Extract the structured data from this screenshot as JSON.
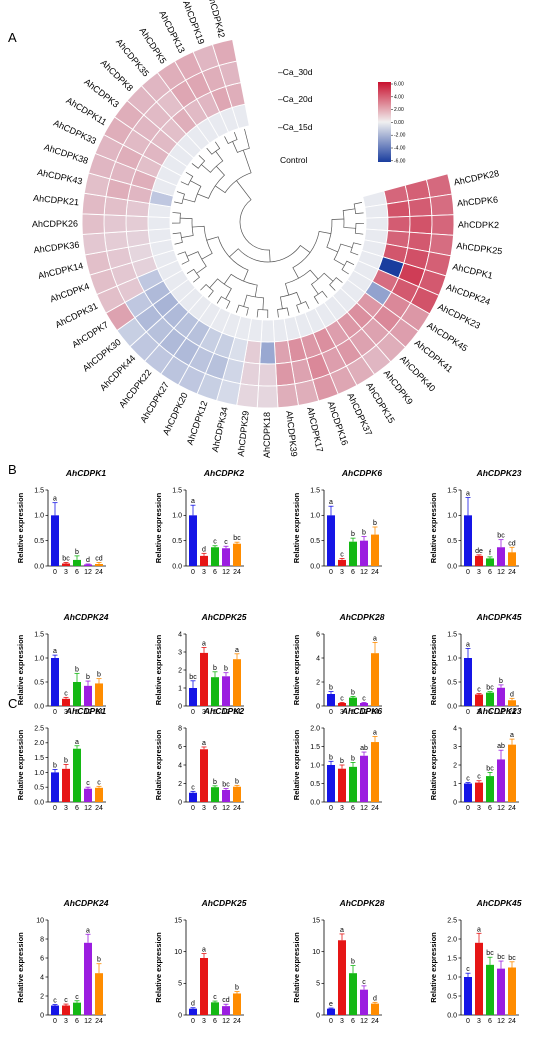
{
  "panels": {
    "a": "A",
    "b": "B",
    "c": "C"
  },
  "heatmap": {
    "genes": [
      "AhCDPK28",
      "AhCDPK6",
      "AhCDPK2",
      "AhCDPK25",
      "AhCDPK1",
      "AhCDPK24",
      "AhCDPK23",
      "AhCDPK45",
      "AhCDPK41",
      "AhCDPK40",
      "AhCDPK9",
      "AhCDPK15",
      "AhCDPK37",
      "AhCDPK16",
      "AhCDPK17",
      "AhCDPK39",
      "AhCDPK18",
      "AhCDPK29",
      "AhCDPK34",
      "AhCDPK12",
      "AhCDPK20",
      "AhCDPK27",
      "AhCDPK22",
      "AhCDPK44",
      "AhCDPK30",
      "AhCDPK7",
      "AhCDPK31",
      "AhCDPK4",
      "AhCDPK14",
      "AhCDPK36",
      "AhCDPK26",
      "AhCDPK21",
      "AhCDPK43",
      "AhCDPK38",
      "AhCDPK33",
      "AhCDPK11",
      "AhCDPK3",
      "AhCDPK8",
      "AhCDPK35",
      "AhCDPK5",
      "AhCDPK13",
      "AhCDPK19",
      "AhCDPK42"
    ],
    "tracks": [
      "Control",
      "Ca_15d",
      "Ca_20d",
      "Ca_30d"
    ],
    "values": [
      [
        0,
        3.2,
        3.4,
        3.1
      ],
      [
        0,
        3.8,
        3.5,
        3.0
      ],
      [
        0,
        3.5,
        3.8,
        3.2
      ],
      [
        0,
        3.3,
        3.6,
        3.0
      ],
      [
        0,
        3.7,
        3.9,
        3.4
      ],
      [
        0,
        -6.0,
        4.5,
        3.6
      ],
      [
        0,
        3.0,
        3.6,
        3.8
      ],
      [
        0,
        -2.0,
        2.2,
        1.8
      ],
      [
        0,
        1.8,
        2.2,
        1.6
      ],
      [
        0,
        2.0,
        1.5,
        1.2
      ],
      [
        0,
        1.8,
        1.5,
        1.0
      ],
      [
        0,
        1.6,
        1.8,
        1.2
      ],
      [
        0,
        2.0,
        1.6,
        1.4
      ],
      [
        0,
        1.8,
        2.2,
        1.8
      ],
      [
        0,
        2.0,
        1.5,
        1.2
      ],
      [
        0,
        1.5,
        1.8,
        1.2
      ],
      [
        0,
        -1.8,
        0.4,
        0.3
      ],
      [
        0,
        0.5,
        0.4,
        0.3
      ],
      [
        0,
        -0.2,
        -0.4,
        -0.3
      ],
      [
        0,
        -0.6,
        -1.0,
        -0.6
      ],
      [
        0,
        -0.6,
        -0.9,
        -0.8
      ],
      [
        0,
        -1.0,
        -1.2,
        -0.9
      ],
      [
        0,
        -1.0,
        -1.2,
        -0.8
      ],
      [
        0,
        -1.2,
        -1.0,
        -0.8
      ],
      [
        0,
        -1.4,
        -1.2,
        -0.6
      ],
      [
        0,
        -1.2,
        -0.8,
        1.5
      ],
      [
        0,
        -0.8,
        0.6,
        0.8
      ],
      [
        0,
        0.4,
        0.6,
        0.8
      ],
      [
        0,
        0.3,
        0.6,
        0.8
      ],
      [
        0,
        0.4,
        0.5,
        0.6
      ],
      [
        0,
        0.5,
        0.6,
        0.8
      ],
      [
        0,
        0.6,
        0.8,
        0.9
      ],
      [
        -0.8,
        1.0,
        1.2,
        0.8
      ],
      [
        0,
        1.2,
        1.0,
        1.0
      ],
      [
        0,
        0.8,
        1.2,
        1.0
      ],
      [
        0,
        1.0,
        0.9,
        1.2
      ],
      [
        0,
        0.9,
        1.0,
        1.2
      ],
      [
        0,
        0.8,
        0.9,
        1.0
      ],
      [
        0,
        1.2,
        0.8,
        1.0
      ],
      [
        0,
        0.9,
        1.4,
        1.2
      ],
      [
        0,
        1.0,
        1.4,
        1.3
      ],
      [
        0,
        1.4,
        1.2,
        1.0
      ],
      [
        0,
        1.2,
        1.0,
        1.3
      ]
    ],
    "legend": {
      "ticks": [
        "6.00",
        "4.00",
        "2.00",
        "0.00",
        "-2.00",
        "-4.00",
        "-6.00"
      ],
      "high_color": "#c8102e",
      "low_color": "#1a3d9e",
      "mid_color": "#ffffff"
    }
  },
  "chart_data": [
    {
      "type": "bar",
      "panel": "B",
      "title": "AhCDPK1",
      "categories": [
        "0",
        "3",
        "6",
        "12",
        "24"
      ],
      "values": [
        1.0,
        0.05,
        0.12,
        0.03,
        0.04
      ],
      "errors": [
        0.25,
        0.02,
        0.08,
        0.01,
        0.03
      ],
      "letters": [
        "a",
        "bc",
        "b",
        "d",
        "cd"
      ],
      "ylabel": "Relative expression",
      "ylim": [
        0,
        1.5
      ],
      "yticks": [
        "0.0",
        "0.5",
        "1.0",
        "1.5"
      ]
    },
    {
      "type": "bar",
      "panel": "B",
      "title": "AhCDPK2",
      "categories": [
        "0",
        "3",
        "6",
        "12",
        "24"
      ],
      "values": [
        1.0,
        0.2,
        0.37,
        0.35,
        0.44
      ],
      "errors": [
        0.2,
        0.05,
        0.03,
        0.04,
        0.03
      ],
      "letters": [
        "a",
        "d",
        "c",
        "c",
        "bc"
      ],
      "ylabel": "Relative expression",
      "ylim": [
        0,
        1.5
      ],
      "yticks": [
        "0.0",
        "0.5",
        "1.0",
        "1.5"
      ]
    },
    {
      "type": "bar",
      "panel": "B",
      "title": "AhCDPK6",
      "categories": [
        "0",
        "3",
        "6",
        "12",
        "24"
      ],
      "values": [
        1.0,
        0.12,
        0.48,
        0.5,
        0.62
      ],
      "errors": [
        0.18,
        0.03,
        0.07,
        0.08,
        0.15
      ],
      "letters": [
        "a",
        "c",
        "b",
        "b",
        "b"
      ],
      "ylabel": "Relative expression",
      "ylim": [
        0,
        1.5
      ],
      "yticks": [
        "0.0",
        "0.5",
        "1.0",
        "1.5"
      ]
    },
    {
      "type": "bar",
      "panel": "B",
      "title": "AhCDPK23",
      "categories": [
        "0",
        "3",
        "6",
        "12",
        "24"
      ],
      "values": [
        1.0,
        0.2,
        0.15,
        0.37,
        0.27
      ],
      "errors": [
        0.35,
        0.02,
        0.03,
        0.15,
        0.1
      ],
      "letters": [
        "a",
        "de",
        "f",
        "bc",
        "cd"
      ],
      "ylabel": "Relative expression",
      "ylim": [
        0,
        1.5
      ],
      "yticks": [
        "0.0",
        "0.5",
        "1.0",
        "1.5"
      ]
    },
    {
      "type": "bar",
      "panel": "B",
      "title": "AhCDPK24",
      "categories": [
        "0",
        "3",
        "6",
        "12",
        "24"
      ],
      "values": [
        1.0,
        0.15,
        0.5,
        0.42,
        0.47
      ],
      "errors": [
        0.06,
        0.03,
        0.18,
        0.1,
        0.1
      ],
      "letters": [
        "a",
        "c",
        "b",
        "b",
        "b"
      ],
      "ylabel": "Relative expression",
      "ylim": [
        0,
        1.5
      ],
      "yticks": [
        "0.0",
        "0.5",
        "1.0",
        "1.5"
      ]
    },
    {
      "type": "bar",
      "panel": "B",
      "title": "AhCDPK25",
      "categories": [
        "0",
        "3",
        "6",
        "12",
        "24"
      ],
      "values": [
        1.0,
        2.95,
        1.6,
        1.65,
        2.6
      ],
      "errors": [
        0.4,
        0.3,
        0.3,
        0.2,
        0.3
      ],
      "letters": [
        "bc",
        "a",
        "b",
        "b",
        "a"
      ],
      "ylabel": "Relative expression",
      "ylim": [
        0,
        4
      ],
      "yticks": [
        "0",
        "1",
        "2",
        "3",
        "4"
      ]
    },
    {
      "type": "bar",
      "panel": "B",
      "title": "AhCDPK28",
      "categories": [
        "0",
        "3",
        "6",
        "12",
        "24"
      ],
      "values": [
        1.0,
        0.25,
        0.7,
        0.25,
        4.4
      ],
      "errors": [
        0.2,
        0.05,
        0.1,
        0.05,
        0.9
      ],
      "letters": [
        "b",
        "c",
        "b",
        "c",
        "a"
      ],
      "ylabel": "Relative expression",
      "ylim": [
        0,
        6
      ],
      "yticks": [
        "0",
        "2",
        "4",
        "6"
      ]
    },
    {
      "type": "bar",
      "panel": "B",
      "title": "AhCDPK45",
      "categories": [
        "0",
        "3",
        "6",
        "12",
        "24"
      ],
      "values": [
        1.0,
        0.24,
        0.28,
        0.38,
        0.12
      ],
      "errors": [
        0.2,
        0.02,
        0.02,
        0.06,
        0.04
      ],
      "letters": [
        "a",
        "c",
        "bc",
        "b",
        "d"
      ],
      "ylabel": "Relative expression",
      "ylim": [
        0,
        1.5
      ],
      "yticks": [
        "0.0",
        "0.5",
        "1.0",
        "1.5"
      ]
    },
    {
      "type": "bar",
      "panel": "C",
      "title": "AhCDPK1",
      "categories": [
        "0",
        "3",
        "6",
        "12",
        "24"
      ],
      "values": [
        1.0,
        1.12,
        1.8,
        0.45,
        0.48
      ],
      "errors": [
        0.1,
        0.15,
        0.1,
        0.05,
        0.05
      ],
      "letters": [
        "b",
        "b",
        "a",
        "c",
        "c"
      ],
      "ylabel": "Relative expression",
      "ylim": [
        0,
        2.5
      ],
      "yticks": [
        "0.0",
        "0.5",
        "1.0",
        "1.5",
        "2.0",
        "2.5"
      ]
    },
    {
      "type": "bar",
      "panel": "C",
      "title": "AhCDPK2",
      "categories": [
        "0",
        "3",
        "6",
        "12",
        "24"
      ],
      "values": [
        1.0,
        5.7,
        1.6,
        1.3,
        1.65
      ],
      "errors": [
        0.15,
        0.25,
        0.15,
        0.15,
        0.15
      ],
      "letters": [
        "c",
        "a",
        "b",
        "bc",
        "b"
      ],
      "ylabel": "Relative expression",
      "ylim": [
        0,
        8
      ],
      "yticks": [
        "0",
        "2",
        "4",
        "6",
        "8"
      ]
    },
    {
      "type": "bar",
      "panel": "C",
      "title": "AhCDPK6",
      "categories": [
        "0",
        "3",
        "6",
        "12",
        "24"
      ],
      "values": [
        1.0,
        0.9,
        0.95,
        1.25,
        1.62
      ],
      "errors": [
        0.1,
        0.1,
        0.12,
        0.1,
        0.15
      ],
      "letters": [
        "b",
        "b",
        "b",
        "ab",
        "a"
      ],
      "ylabel": "Relative expression",
      "ylim": [
        0,
        2.0
      ],
      "yticks": [
        "0.0",
        "0.5",
        "1.0",
        "1.5",
        "2.0"
      ]
    },
    {
      "type": "bar",
      "panel": "C",
      "title": "AhCDPK23",
      "categories": [
        "0",
        "3",
        "6",
        "12",
        "24"
      ],
      "values": [
        1.0,
        1.05,
        1.4,
        2.3,
        3.1
      ],
      "errors": [
        0.05,
        0.1,
        0.2,
        0.5,
        0.3
      ],
      "letters": [
        "c",
        "c",
        "bc",
        "ab",
        "a"
      ],
      "ylabel": "Relative expression",
      "ylim": [
        0,
        4
      ],
      "yticks": [
        "0",
        "1",
        "2",
        "3",
        "4"
      ]
    },
    {
      "type": "bar",
      "panel": "C",
      "title": "AhCDPK24",
      "categories": [
        "0",
        "3",
        "6",
        "12",
        "24"
      ],
      "values": [
        1.0,
        1.0,
        1.3,
        7.6,
        4.4
      ],
      "errors": [
        0.1,
        0.15,
        0.2,
        0.9,
        1.0
      ],
      "letters": [
        "c",
        "c",
        "c",
        "a",
        "b"
      ],
      "ylabel": "Relative expression",
      "ylim": [
        0,
        10
      ],
      "yticks": [
        "0",
        "2",
        "4",
        "6",
        "8",
        "10"
      ]
    },
    {
      "type": "bar",
      "panel": "C",
      "title": "AhCDPK25",
      "categories": [
        "0",
        "3",
        "6",
        "12",
        "24"
      ],
      "values": [
        1.0,
        9.0,
        2.0,
        1.4,
        3.4
      ],
      "errors": [
        0.15,
        0.7,
        0.2,
        0.3,
        0.3
      ],
      "letters": [
        "d",
        "a",
        "c",
        "cd",
        "b"
      ],
      "ylabel": "Relative expression",
      "ylim": [
        0,
        15
      ],
      "yticks": [
        "0",
        "5",
        "10",
        "15"
      ]
    },
    {
      "type": "bar",
      "panel": "C",
      "title": "AhCDPK28",
      "categories": [
        "0",
        "3",
        "6",
        "12",
        "24"
      ],
      "values": [
        1.0,
        11.8,
        6.6,
        4.0,
        1.8
      ],
      "errors": [
        0.1,
        1.0,
        1.2,
        0.6,
        0.2
      ],
      "letters": [
        "e",
        "a",
        "b",
        "c",
        "d"
      ],
      "ylabel": "Relative expression",
      "ylim": [
        0,
        15
      ],
      "yticks": [
        "0",
        "5",
        "10",
        "15"
      ]
    },
    {
      "type": "bar",
      "panel": "C",
      "title": "AhCDPK45",
      "categories": [
        "0",
        "3",
        "6",
        "12",
        "24"
      ],
      "values": [
        1.0,
        1.9,
        1.32,
        1.22,
        1.25
      ],
      "errors": [
        0.1,
        0.25,
        0.2,
        0.2,
        0.15
      ],
      "letters": [
        "c",
        "a",
        "bc",
        "bc",
        "bc"
      ],
      "ylabel": "Relative expression",
      "ylim": [
        0,
        2.5
      ],
      "yticks": [
        "0.0",
        "0.5",
        "1.0",
        "1.5",
        "2.0",
        "2.5"
      ]
    }
  ],
  "bar_colors": [
    "#1515e6",
    "#e61515",
    "#14b814",
    "#9b1de0",
    "#ff8c00"
  ]
}
